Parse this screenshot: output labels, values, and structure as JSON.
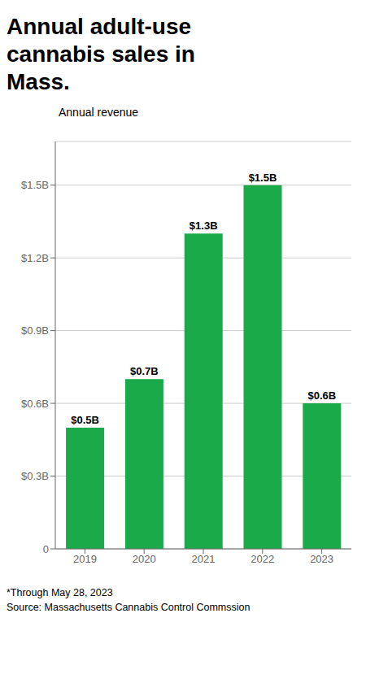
{
  "chart_data": {
    "type": "bar",
    "title": "Annual adult-use\ncannabis sales in\nMass.",
    "subtitle": "Annual revenue",
    "categories": [
      "2019",
      "2020",
      "2021",
      "2022",
      "2023"
    ],
    "values": [
      0.5,
      0.7,
      1.3,
      1.5,
      0.6
    ],
    "value_labels": [
      "$0.5B",
      "$0.7B",
      "$1.3B",
      "$1.5B",
      "$0.6B"
    ],
    "data_labels": true,
    "color": "#1aaa4a",
    "ylim": [
      0,
      1.68
    ],
    "yticks": [
      0,
      {
        "value": 0.3,
        "label": "$0.3B"
      },
      {
        "value": 0.6,
        "label": "$0.6B"
      },
      {
        "value": 0.9,
        "label": "$0.9B"
      },
      {
        "value": 1.2,
        "label": "$1.2B"
      },
      {
        "value": 1.5,
        "label": "$1.5B"
      }
    ],
    "grid": true,
    "annotations": [
      "*Through May 28, 2023",
      "Source: Massachusetts Cannabis Control Commssion"
    ]
  }
}
